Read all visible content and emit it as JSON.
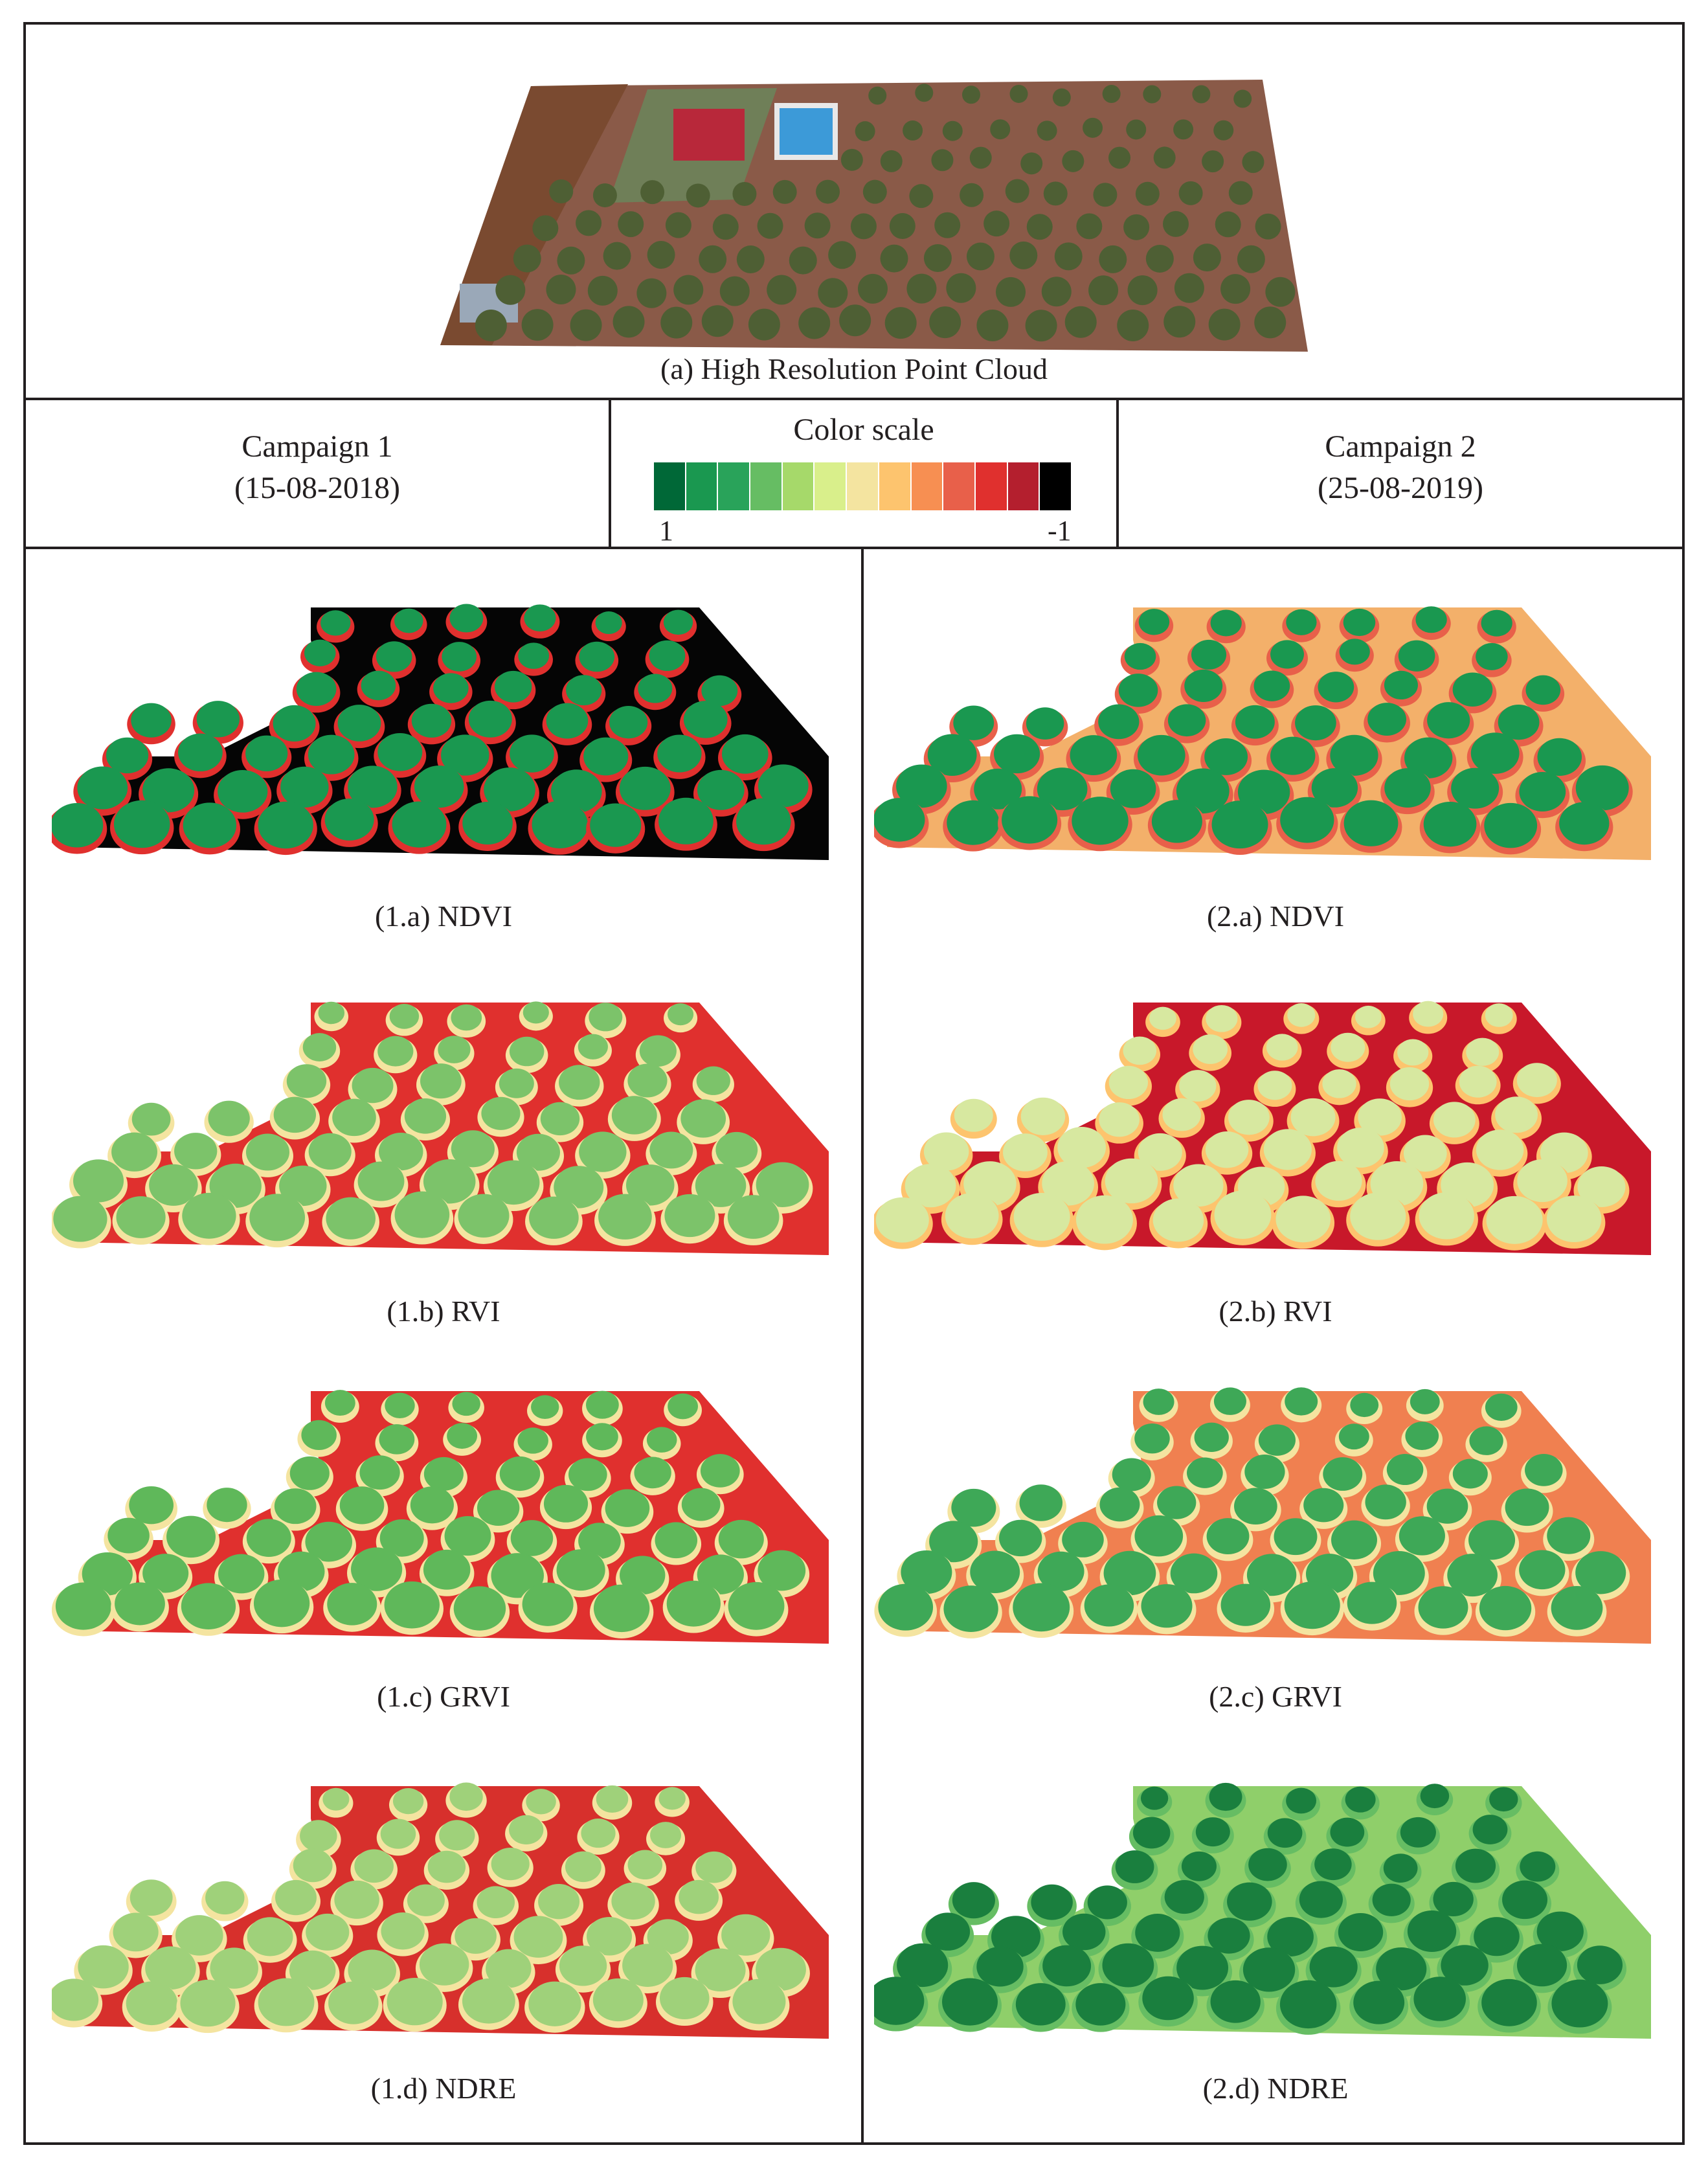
{
  "top": {
    "caption": "(a) High Resolution Point Cloud"
  },
  "legend": {
    "title": "Color scale",
    "min_label": "1",
    "max_label": "-1",
    "colors": [
      "#006837",
      "#1a9850",
      "#29a35a",
      "#66bd63",
      "#a6d96a",
      "#d9ef8b",
      "#f4e4a0",
      "#fdc46e",
      "#f78f52",
      "#e8604a",
      "#e0302e",
      "#b41f2e",
      "#000000"
    ]
  },
  "campaign1": {
    "name": "Campaign 1",
    "date": "(15-08-2018)"
  },
  "campaign2": {
    "name": "Campaign 2",
    "date": "(25-08-2019)"
  },
  "panels": [
    {
      "label": "(1.a) NDVI",
      "ground": "#050505",
      "tree": "#1a9850",
      "rim": "#e0302e"
    },
    {
      "label": "(1.b) RVI",
      "ground": "#e0302e",
      "tree": "#7cc36a",
      "rim": "#f4e4a0"
    },
    {
      "label": "(1.c) GRVI",
      "ground": "#e0302e",
      "tree": "#5fb85a",
      "rim": "#f4e4a0"
    },
    {
      "label": "(1.d) NDRE",
      "ground": "#d7302c",
      "tree": "#9fd17a",
      "rim": "#f4e4a0"
    },
    {
      "label": "(2.a) NDVI",
      "ground": "#f3b06a",
      "tree": "#1a9850",
      "rim": "#e8604a"
    },
    {
      "label": "(2.b) RVI",
      "ground": "#c8182a",
      "tree": "#d7e8a0",
      "rim": "#fdc46e"
    },
    {
      "label": "(2.c) GRVI",
      "ground": "#f08050",
      "tree": "#3ea857",
      "rim": "#f4e4a0"
    },
    {
      "label": "(2.d) NDRE",
      "ground": "#8fcf6a",
      "tree": "#1a7f3e",
      "rim": "#66bd63"
    }
  ]
}
